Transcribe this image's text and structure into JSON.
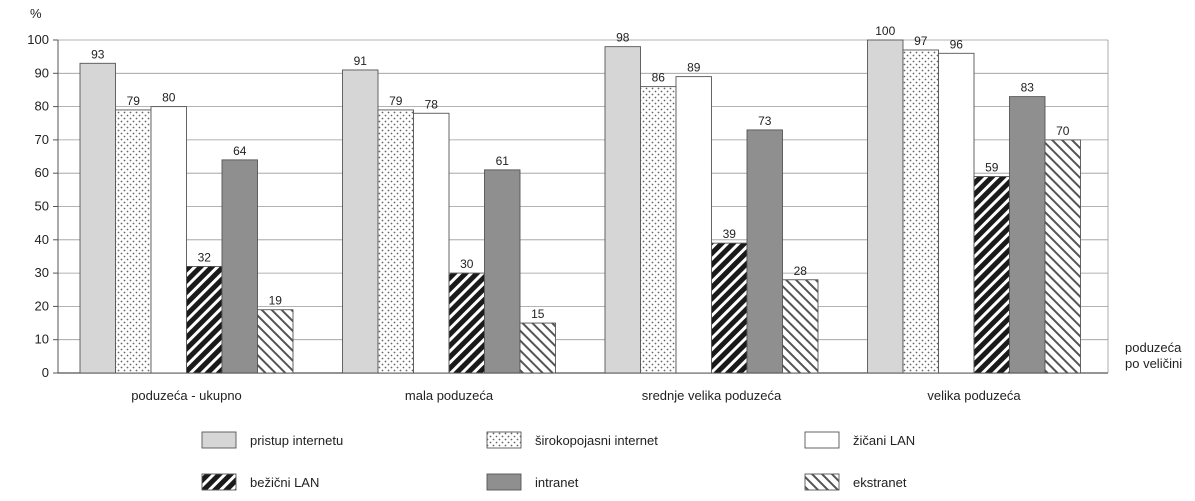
{
  "chart_data": {
    "type": "bar",
    "ylabel": "%",
    "xlabel": "poduzeća po veličini",
    "xlabel_lines": [
      "poduzeća",
      "po veličini"
    ],
    "ylim": [
      0,
      100
    ],
    "yticks": [
      0,
      10,
      20,
      30,
      40,
      50,
      60,
      70,
      80,
      90,
      100
    ],
    "grid": true,
    "legend_position": "bottom",
    "categories": [
      "poduzeća - ukupno",
      "mala poduzeća",
      "srednje velika poduzeća",
      "velika poduzeća"
    ],
    "series": [
      {
        "name": "pristup internetu",
        "values": [
          93,
          91,
          98,
          100
        ],
        "pattern": "solid",
        "color": "#d6d6d6"
      },
      {
        "name": "širokopojasni internet",
        "values": [
          79,
          79,
          86,
          97
        ],
        "pattern": "dots",
        "color": "#ffffff"
      },
      {
        "name": "žičani LAN",
        "values": [
          80,
          78,
          89,
          96
        ],
        "pattern": "solid",
        "color": "#ffffff"
      },
      {
        "name": "bežični LAN",
        "values": [
          32,
          30,
          39,
          59
        ],
        "pattern": "hatch-dense",
        "color": "#1e1e1e"
      },
      {
        "name": "intranet",
        "values": [
          64,
          61,
          73,
          83
        ],
        "pattern": "solid",
        "color": "#8f8f8f"
      },
      {
        "name": "ekstranet",
        "values": [
          19,
          15,
          28,
          70
        ],
        "pattern": "hatch-light",
        "color": "#ffffff"
      }
    ]
  }
}
